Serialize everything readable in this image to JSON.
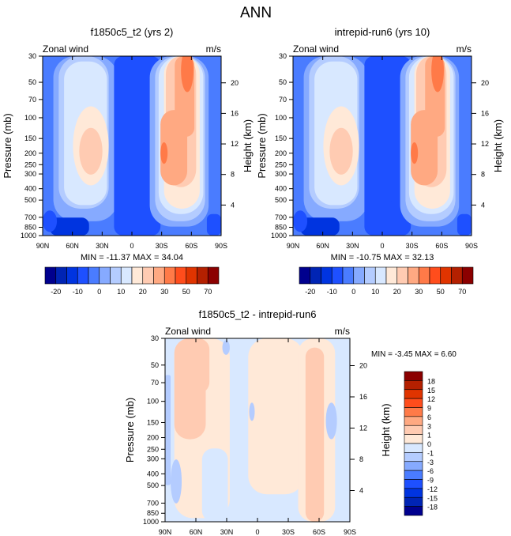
{
  "title": "ANN",
  "palette": [
    "#00008e",
    "#0024b4",
    "#0034e0",
    "#1e50ff",
    "#4a7cff",
    "#86aaff",
    "#b4ccff",
    "#d8e8ff",
    "#ffe9d8",
    "#ffcbb2",
    "#ffa982",
    "#ff7a48",
    "#ff4d1c",
    "#e03400",
    "#b42000",
    "#8b0000"
  ],
  "chart_data": [
    {
      "type": "heatmap",
      "title": "f1850c5_t2 (yrs 2)",
      "left_label": "Zonal wind",
      "right_label": "m/s",
      "ylabel": "Pressure (mb)",
      "ylabel_right": "Height (km)",
      "xticks": [
        "90N",
        "60N",
        "30N",
        "0",
        "30S",
        "60S",
        "90S"
      ],
      "yticks": [
        30,
        50,
        70,
        100,
        150,
        200,
        250,
        300,
        400,
        500,
        700,
        850,
        1000
      ],
      "height_ticks": [
        4,
        8,
        12,
        16,
        20
      ],
      "ylim": [
        30,
        1000
      ],
      "min": -11.37,
      "max": 34.04,
      "stats": "MIN = -11.37  MAX =  34.04",
      "levels": [
        -20,
        -15,
        -10,
        -5,
        0,
        5,
        10,
        15,
        20,
        25,
        30,
        40,
        50,
        60,
        70
      ],
      "colorbar_labels": [
        "-20",
        "-10",
        "0",
        "10",
        "20",
        "30",
        "50",
        "70"
      ]
    },
    {
      "type": "heatmap",
      "title": "intrepid-run6 (yrs 10)",
      "left_label": "Zonal wind",
      "right_label": "m/s",
      "ylabel": "Pressure (mb)",
      "ylabel_right": "Height (km)",
      "xticks": [
        "90N",
        "60N",
        "30N",
        "0",
        "30S",
        "60S",
        "90S"
      ],
      "yticks": [
        30,
        50,
        70,
        100,
        150,
        200,
        250,
        300,
        400,
        500,
        700,
        850,
        1000
      ],
      "height_ticks": [
        4,
        8,
        12,
        16,
        20
      ],
      "ylim": [
        30,
        1000
      ],
      "min": -10.75,
      "max": 32.13,
      "stats": "MIN = -10.75  MAX =  32.13",
      "levels": [
        -20,
        -15,
        -10,
        -5,
        0,
        5,
        10,
        15,
        20,
        25,
        30,
        40,
        50,
        60,
        70
      ],
      "colorbar_labels": [
        "-20",
        "-10",
        "0",
        "10",
        "20",
        "30",
        "50",
        "70"
      ]
    },
    {
      "type": "heatmap",
      "title": "f1850c5_t2 - intrepid-run6",
      "left_label": "Zonal wind",
      "right_label": "m/s",
      "ylabel": "Pressure (mb)",
      "ylabel_right": "Height (km)",
      "xticks": [
        "90N",
        "60N",
        "30N",
        "0",
        "30S",
        "60S",
        "90S"
      ],
      "yticks": [
        30,
        50,
        70,
        100,
        150,
        200,
        250,
        300,
        400,
        500,
        700,
        850,
        1000
      ],
      "height_ticks": [
        4,
        8,
        12,
        16,
        20
      ],
      "ylim": [
        30,
        1000
      ],
      "min": -3.45,
      "max": 6.6,
      "stats": "MIN =  -3.45  MAX =   6.60",
      "levels": [
        -18,
        -15,
        -12,
        -9,
        -6,
        -3,
        -1,
        0,
        1,
        3,
        6,
        9,
        12,
        15,
        18
      ],
      "colorbar_labels": [
        "-18",
        "-15",
        "-12",
        "-9",
        "-6",
        "-3",
        "-1",
        "0",
        "1",
        "3",
        "6",
        "9",
        "12",
        "15",
        "18"
      ]
    }
  ]
}
